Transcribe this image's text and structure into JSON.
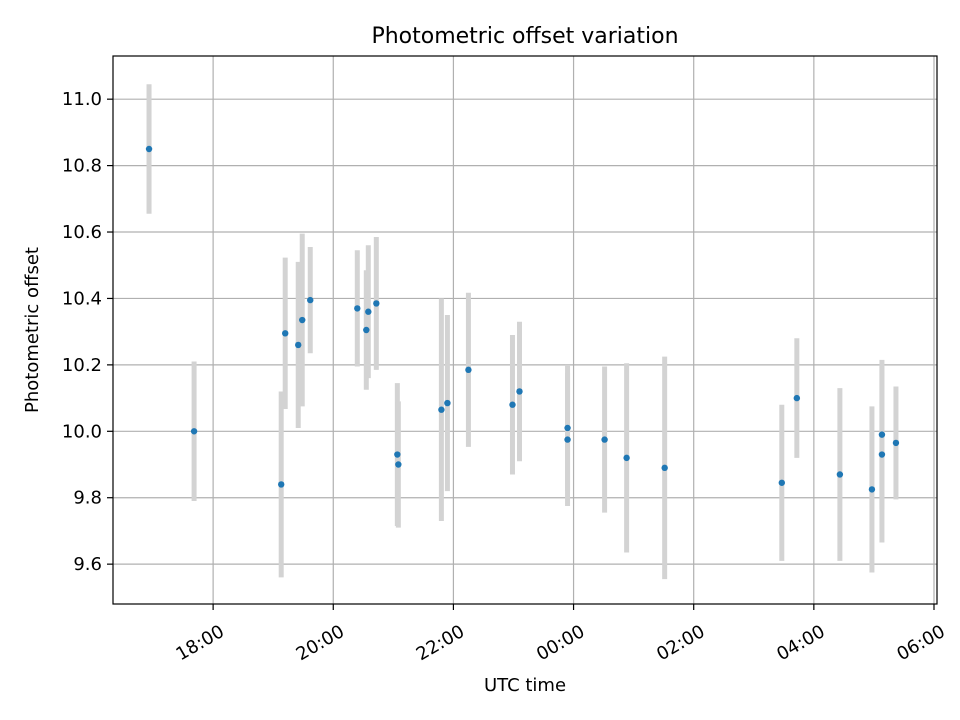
{
  "chart_data": {
    "type": "scatter",
    "title": "Photometric offset variation",
    "xlabel": "UTC time",
    "ylabel": "Photometric offset",
    "x_unit": "UTC time (HH:MM), observation night spanning midnight",
    "xlim": [
      "16:20",
      "06:03"
    ],
    "ylim": [
      9.48,
      11.13
    ],
    "xticks": [
      "18:00",
      "20:00",
      "22:00",
      "00:00",
      "02:00",
      "04:00",
      "06:00"
    ],
    "yticks": [
      "9.6",
      "9.8",
      "10.0",
      "10.2",
      "10.4",
      "10.6",
      "10.8",
      "11.0"
    ],
    "grid": true,
    "point_color": "#1f77b4",
    "errorbar_color": "#d3d3d3",
    "points": [
      {
        "x": "16:56",
        "y": 10.85,
        "err": 0.195
      },
      {
        "x": "17:41",
        "y": 10.0,
        "err": 0.21
      },
      {
        "x": "19:08",
        "y": 9.84,
        "err": 0.28
      },
      {
        "x": "19:12",
        "y": 10.295,
        "err": 0.228
      },
      {
        "x": "19:25",
        "y": 10.26,
        "err": 0.25
      },
      {
        "x": "19:29",
        "y": 10.335,
        "err": 0.26
      },
      {
        "x": "19:37",
        "y": 10.395,
        "err": 0.16
      },
      {
        "x": "20:24",
        "y": 10.37,
        "err": 0.175
      },
      {
        "x": "20:33",
        "y": 10.305,
        "err": 0.18
      },
      {
        "x": "20:35",
        "y": 10.36,
        "err": 0.2
      },
      {
        "x": "20:43",
        "y": 10.385,
        "err": 0.2
      },
      {
        "x": "21:04",
        "y": 9.93,
        "err": 0.215
      },
      {
        "x": "21:05",
        "y": 9.9,
        "err": 0.19
      },
      {
        "x": "21:48",
        "y": 10.065,
        "err": 0.335
      },
      {
        "x": "21:54",
        "y": 10.085,
        "err": 0.265
      },
      {
        "x": "22:15",
        "y": 10.185,
        "err": 0.232
      },
      {
        "x": "22:59",
        "y": 10.08,
        "err": 0.21
      },
      {
        "x": "23:06",
        "y": 10.12,
        "err": 0.21
      },
      {
        "x": "23:54",
        "y": 10.01,
        "err": 0.19
      },
      {
        "x": "23:54",
        "y": 9.975,
        "err": 0.2
      },
      {
        "x": "00:31",
        "y": 9.975,
        "err": 0.22
      },
      {
        "x": "00:53",
        "y": 9.92,
        "err": 0.285
      },
      {
        "x": "01:31",
        "y": 9.89,
        "err": 0.335
      },
      {
        "x": "03:28",
        "y": 9.845,
        "err": 0.235
      },
      {
        "x": "03:43",
        "y": 10.1,
        "err": 0.18
      },
      {
        "x": "04:26",
        "y": 9.87,
        "err": 0.26
      },
      {
        "x": "04:58",
        "y": 9.825,
        "err": 0.25
      },
      {
        "x": "05:08",
        "y": 9.99,
        "err": 0.225
      },
      {
        "x": "05:08",
        "y": 9.93,
        "err": 0.265
      },
      {
        "x": "05:22",
        "y": 9.965,
        "err": 0.17
      }
    ]
  }
}
